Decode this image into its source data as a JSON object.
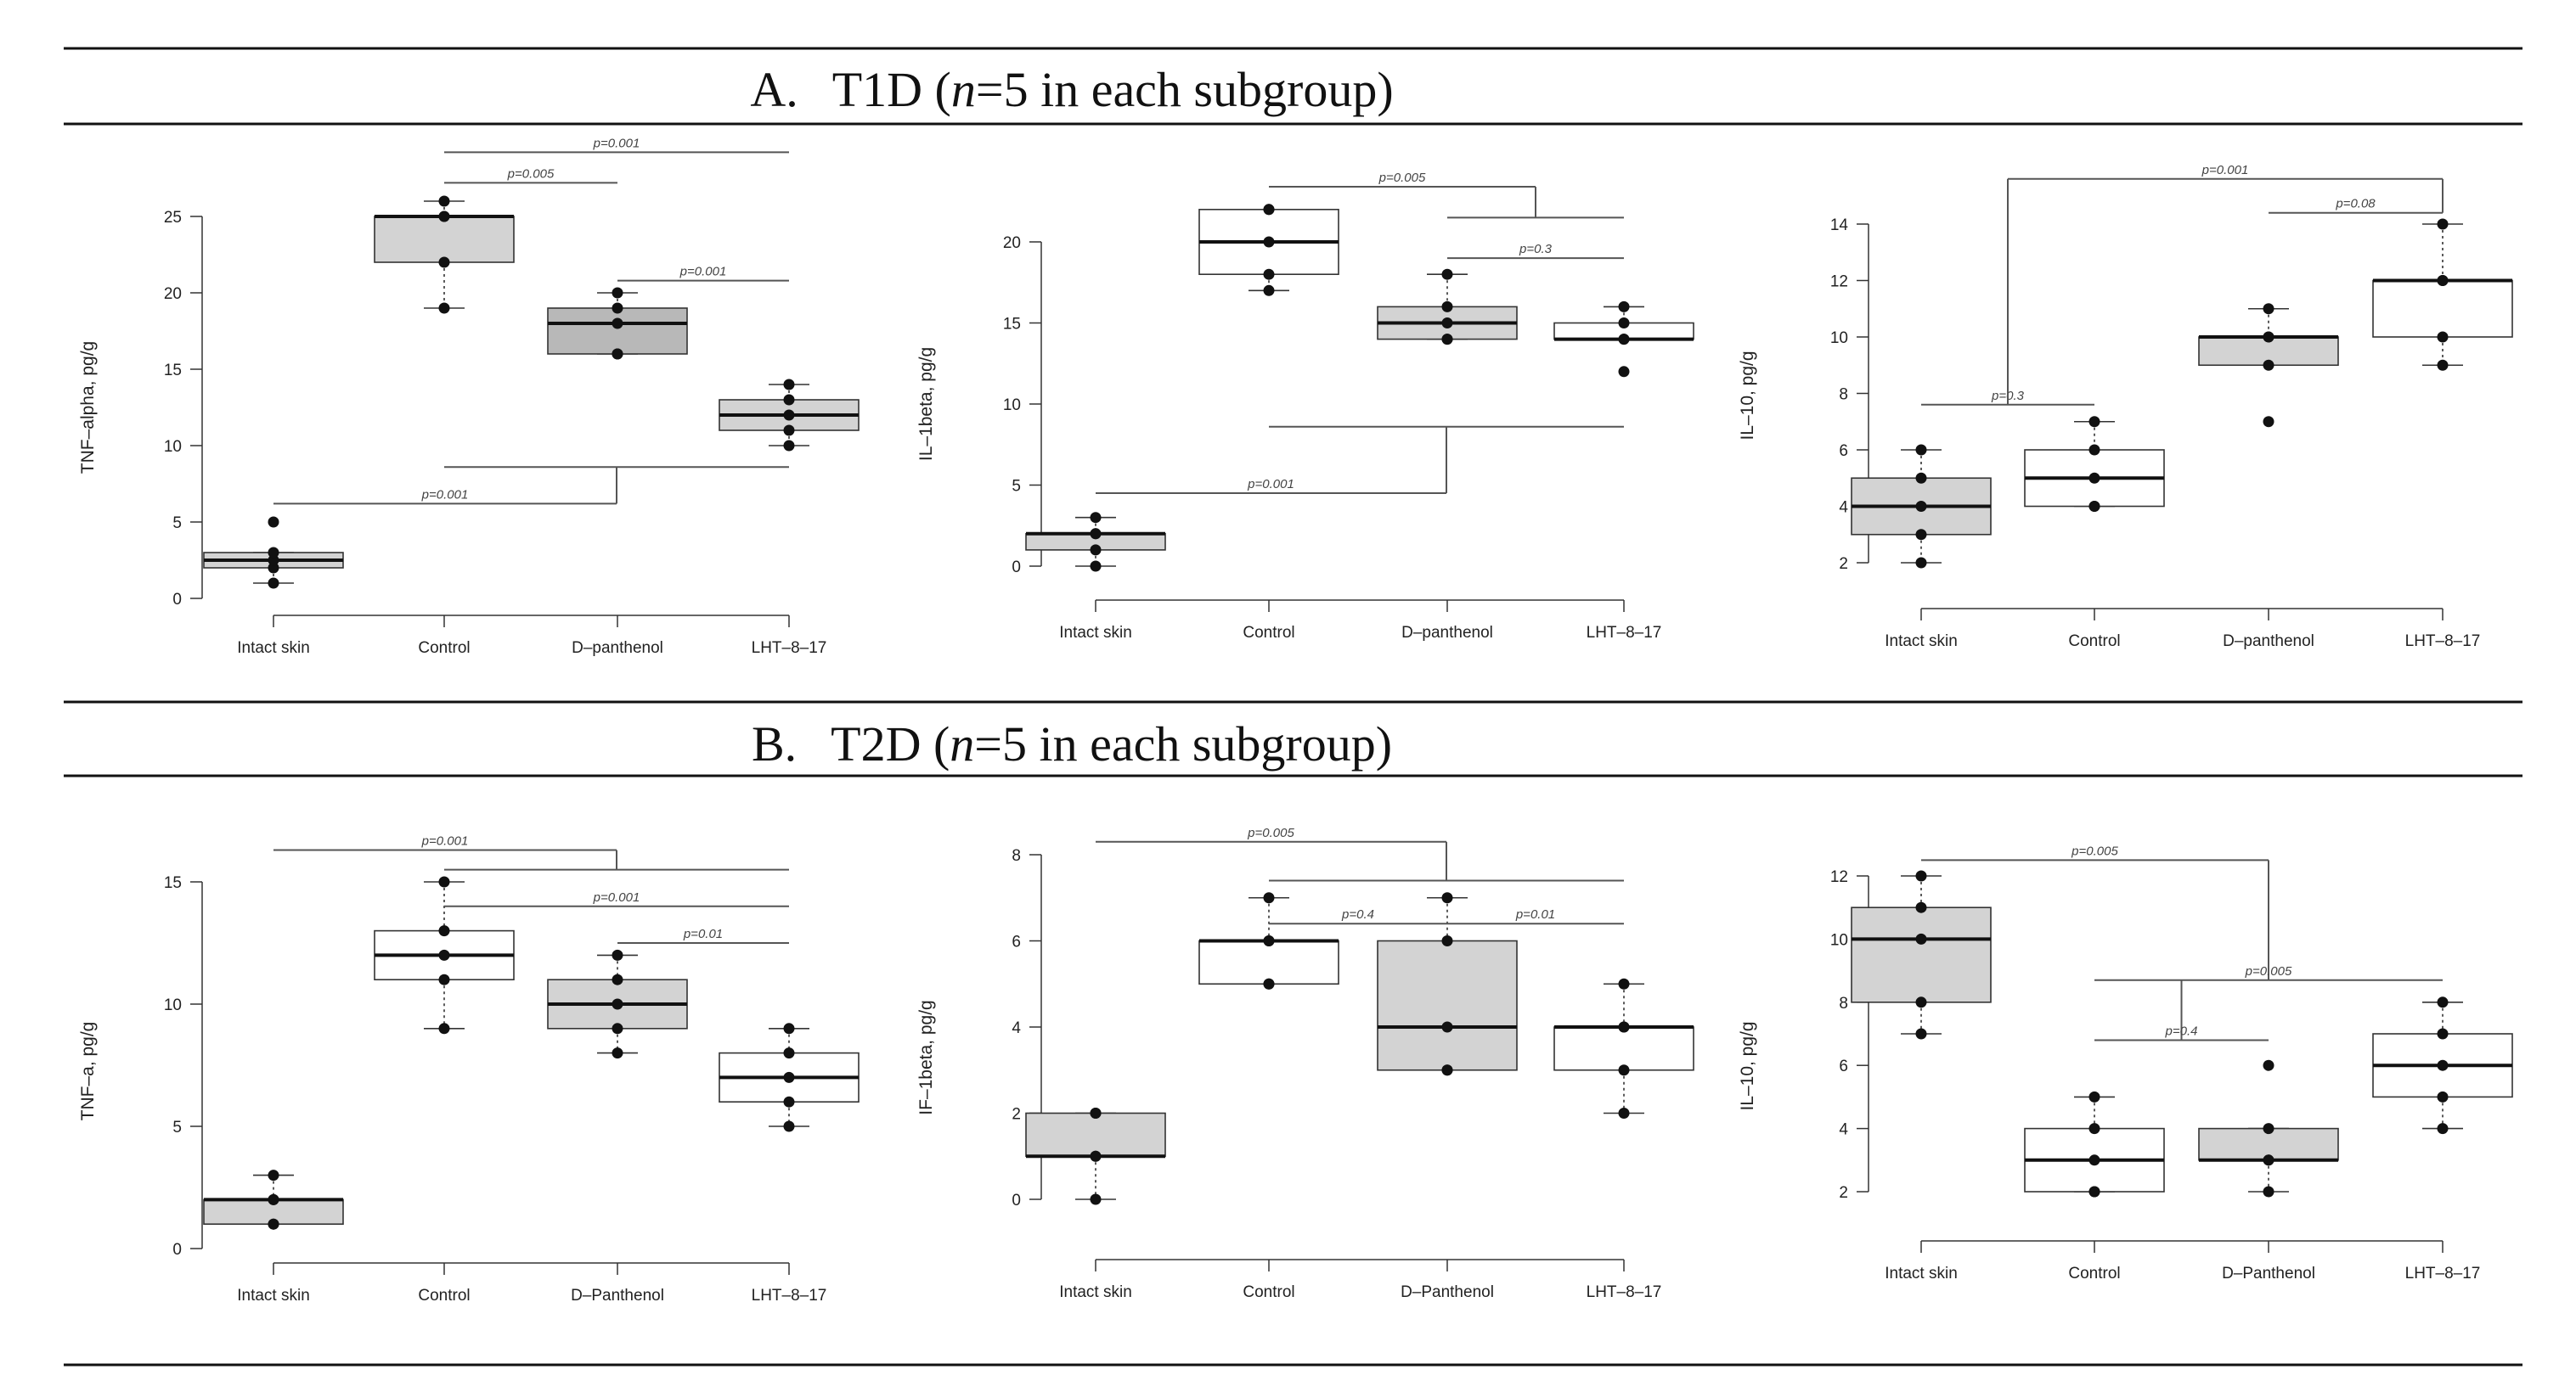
{
  "headings": {
    "a_letter": "A.",
    "a_label": "T1D (",
    "a_n": "n",
    "a_rest": "=5 in each subgroup)",
    "b_letter": "B.",
    "b_label": "T2D (",
    "b_n": "n",
    "b_rest": "=5 in each subgroup)"
  },
  "colors": {
    "gray": "#d3d3d3",
    "dark": "#b8b8b8",
    "white": "#ffffff"
  },
  "chart_data": [
    {
      "type": "box",
      "section": "A",
      "ylabel": "TNF–alpha, pg/g",
      "ylim": [
        0,
        25
      ],
      "ymin_axis": 0,
      "ymax_axis": 25,
      "yticks": [
        0,
        5,
        10,
        15,
        20,
        25
      ],
      "categories": [
        "Intact skin",
        "Control",
        "D–panthenol",
        "LHT–8–17"
      ],
      "boxes": [
        {
          "fill": "gray",
          "low": 1,
          "q1": 2,
          "median": 2.5,
          "q3": 3,
          "high": 3,
          "points": [
            1,
            2,
            2.5,
            3,
            5
          ]
        },
        {
          "fill": "gray",
          "low": 19,
          "q1": 22,
          "median": 25,
          "q3": 25,
          "high": 26,
          "points": [
            19,
            22,
            25,
            25,
            26
          ]
        },
        {
          "fill": "dark",
          "low": 16,
          "q1": 16,
          "median": 18,
          "q3": 19,
          "high": 20,
          "points": [
            16,
            16,
            18,
            19,
            20
          ]
        },
        {
          "fill": "gray",
          "low": 10,
          "q1": 11,
          "median": 12,
          "q3": 13,
          "high": 14,
          "points": [
            10,
            11,
            12,
            13,
            14
          ]
        }
      ],
      "annotations": [
        {
          "label": "p=0.001",
          "kind": "line",
          "from": 1,
          "to": 3,
          "y": 29.2
        },
        {
          "label": "p=0.005",
          "kind": "line",
          "from": 1,
          "to": 2,
          "y": 27.2
        },
        {
          "label": "p=0.001",
          "kind": "line",
          "from": 2,
          "to": 3,
          "y": 20.8
        },
        {
          "label": "p=0.001",
          "kind": "group",
          "a": 0,
          "g1": 1,
          "g2": 3,
          "ya": 6.2,
          "yg": 8.6
        }
      ]
    },
    {
      "type": "box",
      "section": "A",
      "ylabel": "IL–1beta, pg/g",
      "ylim": [
        0,
        20
      ],
      "ymin_axis": 0,
      "ymax_axis": 20,
      "yticks": [
        0,
        5,
        10,
        15,
        20
      ],
      "categories": [
        "Intact skin",
        "Control",
        "D–panthenol",
        "LHT–8–17"
      ],
      "boxes": [
        {
          "fill": "gray",
          "low": 0,
          "q1": 1,
          "median": 2,
          "q3": 2,
          "high": 3,
          "points": [
            0,
            1,
            2,
            2,
            3
          ]
        },
        {
          "fill": "white",
          "low": 17,
          "q1": 18,
          "median": 20,
          "q3": 22,
          "high": 22,
          "points": [
            17,
            18,
            20,
            22,
            22
          ]
        },
        {
          "fill": "gray",
          "low": 14,
          "q1": 14,
          "median": 15,
          "q3": 16,
          "high": 18,
          "points": [
            14,
            14,
            15,
            16,
            18
          ]
        },
        {
          "fill": "white",
          "low": 14,
          "q1": 14,
          "median": 14,
          "q3": 15,
          "high": 16,
          "points": [
            12,
            14,
            14,
            15,
            16
          ]
        }
      ],
      "annotations": [
        {
          "label": "p=0.005",
          "kind": "group",
          "a": 1,
          "g1": 2,
          "g2": 3,
          "ya": 23.4,
          "yg": 21.5
        },
        {
          "label": "p=0.3",
          "kind": "line",
          "from": 2,
          "to": 3,
          "y": 19
        },
        {
          "label": "p=0.001",
          "kind": "group",
          "a": 0,
          "g1": 1,
          "g2": 3,
          "ya": 4.5,
          "yg": 8.6
        }
      ]
    },
    {
      "type": "box",
      "section": "A",
      "ylabel": "IL–10, pg/g",
      "ylim": [
        2,
        14
      ],
      "ymin_axis": 2,
      "ymax_axis": 14,
      "yticks": [
        2,
        4,
        6,
        8,
        10,
        12,
        14
      ],
      "categories": [
        "Intact skin",
        "Control",
        "D–panthenol",
        "LHT–8–17"
      ],
      "boxes": [
        {
          "fill": "gray",
          "low": 2,
          "q1": 3,
          "median": 4,
          "q3": 5,
          "high": 6,
          "points": [
            2,
            3,
            4,
            5,
            6
          ]
        },
        {
          "fill": "white",
          "low": 4,
          "q1": 4,
          "median": 5,
          "q3": 6,
          "high": 7,
          "points": [
            4,
            4,
            5,
            6,
            7
          ]
        },
        {
          "fill": "gray",
          "low": 9,
          "q1": 9,
          "median": 10,
          "q3": 10,
          "high": 11,
          "points": [
            7,
            9,
            10,
            10,
            11
          ]
        },
        {
          "fill": "white",
          "low": 9,
          "q1": 10,
          "median": 12,
          "q3": 12,
          "high": 14,
          "points": [
            9,
            10,
            12,
            12,
            14
          ]
        }
      ],
      "annotations": [
        {
          "label": "p=0.3",
          "kind": "line",
          "from": 0,
          "to": 1,
          "y": 7.6
        },
        {
          "label": "p=0.001",
          "kind": "groupline",
          "g1": 0,
          "g2": 1,
          "ya": 7.6,
          "from": 1,
          "to": 3,
          "yt": 15.6,
          "ypt": 14.4
        },
        {
          "label": "p=0.08",
          "kind": "line",
          "from": 2,
          "to": 3,
          "y": 14.4
        }
      ]
    },
    {
      "type": "box",
      "section": "B",
      "ylabel": "TNF–a, pg/g",
      "ylim": [
        0,
        15
      ],
      "ymin_axis": 0,
      "ymax_axis": 15,
      "yticks": [
        0,
        5,
        10,
        15
      ],
      "categories": [
        "Intact skin",
        "Control",
        "D–Panthenol",
        "LHT–8–17"
      ],
      "boxes": [
        {
          "fill": "gray",
          "low": 1,
          "q1": 1,
          "median": 2,
          "q3": 2,
          "high": 3,
          "points": [
            1,
            1,
            2,
            2,
            3
          ]
        },
        {
          "fill": "white",
          "low": 9,
          "q1": 11,
          "median": 12,
          "q3": 13,
          "high": 15,
          "points": [
            9,
            11,
            12,
            13,
            15
          ]
        },
        {
          "fill": "gray",
          "low": 8,
          "q1": 9,
          "median": 10,
          "q3": 11,
          "high": 12,
          "points": [
            8,
            9,
            10,
            11,
            12
          ]
        },
        {
          "fill": "white",
          "low": 5,
          "q1": 6,
          "median": 7,
          "q3": 8,
          "high": 9,
          "points": [
            5,
            6,
            7,
            8,
            9
          ]
        }
      ],
      "annotations": [
        {
          "label": "p=0.001",
          "kind": "group",
          "a": 0,
          "g1": 1,
          "g2": 3,
          "ya": 16.3,
          "yg": 15.5
        },
        {
          "label": "p=0.001",
          "kind": "line",
          "from": 1,
          "to": 3,
          "y": 14
        },
        {
          "label": "p=0.01",
          "kind": "line",
          "from": 2,
          "to": 3,
          "y": 12.5
        }
      ]
    },
    {
      "type": "box",
      "section": "B",
      "ylabel": "IF–1beta, pg/g",
      "ylim": [
        0,
        8
      ],
      "ymin_axis": 0,
      "ymax_axis": 8,
      "yticks": [
        0,
        2,
        4,
        6,
        8
      ],
      "categories": [
        "Intact skin",
        "Control",
        "D–Panthenol",
        "LHT–8–17"
      ],
      "boxes": [
        {
          "fill": "gray",
          "low": 0,
          "q1": 1,
          "median": 1,
          "q3": 2,
          "high": 2,
          "points": [
            0,
            1,
            1,
            2,
            2
          ]
        },
        {
          "fill": "white",
          "low": 5,
          "q1": 5,
          "median": 6,
          "q3": 6,
          "high": 7,
          "points": [
            5,
            5,
            6,
            6,
            7
          ]
        },
        {
          "fill": "gray",
          "low": 3,
          "q1": 3,
          "median": 4,
          "q3": 6,
          "high": 7,
          "points": [
            3,
            3,
            4,
            6,
            7
          ]
        },
        {
          "fill": "white",
          "low": 2,
          "q1": 3,
          "median": 4,
          "q3": 4,
          "high": 5,
          "points": [
            2,
            3,
            4,
            4,
            5
          ]
        }
      ],
      "annotations": [
        {
          "label": "p=0.005",
          "kind": "group",
          "a": 0,
          "g1": 1,
          "g2": 3,
          "ya": 8.3,
          "yg": 7.4
        },
        {
          "label": "p=0.4",
          "kind": "line",
          "from": 1,
          "to": 2,
          "y": 6.4
        },
        {
          "label": "p=0.01",
          "kind": "line",
          "from": 2,
          "to": 3,
          "y": 6.4
        }
      ]
    },
    {
      "type": "box",
      "section": "B",
      "ylabel": "IL–10, pg/g",
      "ylim": [
        2,
        12
      ],
      "ymin_axis": 2,
      "ymax_axis": 12,
      "yticks": [
        2,
        4,
        6,
        8,
        10,
        12
      ],
      "categories": [
        "Intact skin",
        "Control",
        "D–Panthenol",
        "LHT–8–17"
      ],
      "boxes": [
        {
          "fill": "gray",
          "low": 7,
          "q1": 8,
          "median": 10,
          "q3": 11,
          "high": 12,
          "points": [
            7,
            8,
            10,
            11,
            12
          ]
        },
        {
          "fill": "white",
          "low": 2,
          "q1": 2,
          "median": 3,
          "q3": 4,
          "high": 5,
          "points": [
            2,
            2,
            3,
            4,
            5
          ]
        },
        {
          "fill": "gray",
          "low": 2,
          "q1": 3,
          "median": 3,
          "q3": 4,
          "high": 4,
          "points": [
            2,
            3,
            3,
            4,
            6
          ]
        },
        {
          "fill": "white",
          "low": 4,
          "q1": 5,
          "median": 6,
          "q3": 7,
          "high": 8,
          "points": [
            4,
            5,
            6,
            7,
            8
          ]
        }
      ],
      "annotations": [
        {
          "label": "p=0.005",
          "kind": "groupnest",
          "a": 0,
          "ya": 12.5,
          "g1": 1,
          "g2": 3,
          "yg": 8.7,
          "s1": 1,
          "s2": 2,
          "ys": 6.8
        },
        {
          "label": "p=0.4",
          "kind": "line",
          "from": 1,
          "to": 2,
          "y": 6.8
        },
        {
          "label": "p=0.005",
          "kind": "line",
          "from": 1,
          "to": 3,
          "y": 8.7
        }
      ]
    }
  ]
}
